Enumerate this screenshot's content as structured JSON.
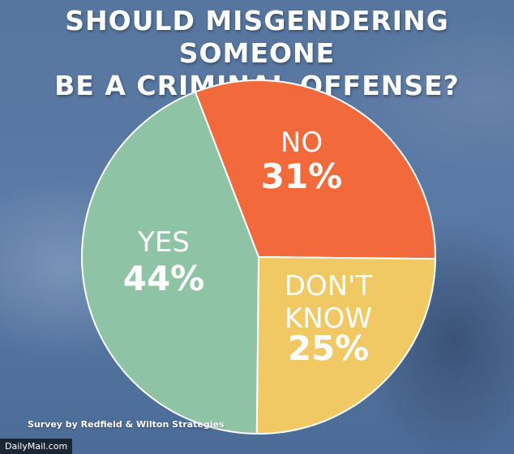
{
  "title_lines": [
    "SHOULD MISGENDERING SOMEONE",
    "BE A CRIMINAL OFFENSE?"
  ],
  "source": "Survey by Redfield & Wilton Strategies",
  "credit": "DailyMail.com",
  "chart_data": {
    "type": "pie",
    "title": "SHOULD MISGENDERING SOMEONE BE A CRIMINAL OFFENSE?",
    "slices": [
      {
        "label_lines": [
          "NO"
        ],
        "value": 31,
        "value_text": "31%",
        "color": "#f26a3b"
      },
      {
        "label_lines": [
          "DON'T",
          "KNOW"
        ],
        "value": 25,
        "value_text": "25%",
        "color": "#f0c965"
      },
      {
        "label_lines": [
          "YES"
        ],
        "value": 44,
        "value_text": "44%",
        "color": "#8ec3a6"
      }
    ],
    "start_angle_deg": -21,
    "direction": "clockwise",
    "slice_border_color": "#ffffff"
  }
}
